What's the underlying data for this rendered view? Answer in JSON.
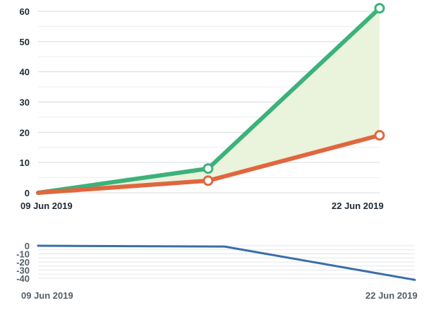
{
  "chart_data": [
    {
      "type": "line",
      "x": [
        "09 Jun 2019",
        "",
        "22 Jun 2019"
      ],
      "x_tick_labels": [
        "09 Jun 2019",
        "22 Jun 2019"
      ],
      "series": [
        {
          "values": [
            0,
            8,
            61
          ],
          "color": "#3cb27a"
        },
        {
          "values": [
            0,
            4,
            19
          ],
          "color": "#e0663e"
        }
      ],
      "fill_between_color": "#eaf3db",
      "y_ticks": [
        "0",
        "10",
        "20",
        "30",
        "40",
        "50",
        "60"
      ],
      "ylim": [
        0,
        60
      ],
      "grid": true
    },
    {
      "type": "line",
      "x": [
        "09 Jun 2019",
        "",
        "22 Jun 2019"
      ],
      "x_tick_labels": [
        "09 Jun 2019",
        "22 Jun 2019"
      ],
      "series": [
        {
          "values": [
            0,
            -1,
            -42
          ],
          "color": "#3a6ea8"
        }
      ],
      "y_ticks": [
        "0",
        "-10",
        "-20",
        "-30",
        "-40"
      ],
      "ylim": [
        -40,
        0
      ],
      "grid": true
    }
  ]
}
